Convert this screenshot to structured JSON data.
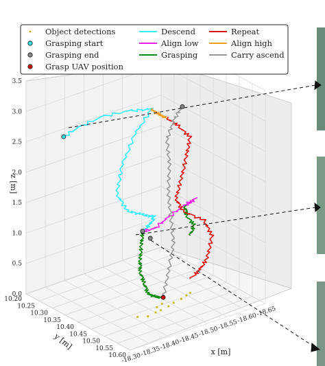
{
  "chart_data": {
    "type": "line",
    "projection": "3d",
    "title": "",
    "xlabel": "x [m]",
    "ylabel": "y [m]",
    "zlabel": "z [m]",
    "xlim": [
      -18.3,
      -18.65
    ],
    "ylim": [
      10.2,
      10.6
    ],
    "zlim": [
      0.0,
      3.5
    ],
    "x_ticks": [
      "-18.30",
      "-18.35",
      "-18.40",
      "-18.45",
      "-18.50",
      "-18.55",
      "-18.60",
      "-18.65"
    ],
    "y_ticks": [
      "10.20",
      "10.25",
      "10.30",
      "10.35",
      "10.40",
      "10.45",
      "10.50",
      "10.55",
      "10.60"
    ],
    "z_ticks": [
      "0.0",
      "0.5",
      "1.0",
      "1.5",
      "2.0",
      "2.5",
      "3.0",
      "3.5"
    ],
    "grid": true,
    "legend_position": "top",
    "legend": [
      {
        "label": "Object detections",
        "kind": "dots",
        "color": "#d4a017"
      },
      {
        "label": "Grasping start",
        "kind": "marker",
        "color": "#33e0e0"
      },
      {
        "label": "Grasping end",
        "kind": "marker",
        "color": "#888888"
      },
      {
        "label": "Grasp UAV position",
        "kind": "marker",
        "color": "#cc1111"
      },
      {
        "label": "Descend",
        "kind": "line",
        "color": "#33eeff"
      },
      {
        "label": "Align low",
        "kind": "line",
        "color": "#ee22ee"
      },
      {
        "label": "Grasping",
        "kind": "line",
        "color": "#118811"
      },
      {
        "label": "Repeat",
        "kind": "line",
        "color": "#dd1111"
      },
      {
        "label": "Align high",
        "kind": "line",
        "color": "#f0a020"
      },
      {
        "label": "Carry ascend",
        "kind": "line",
        "color": "#999999"
      }
    ],
    "series": [
      {
        "name": "Descend",
        "color": "#33eeff",
        "points": [
          [
            -18.33,
            10.3,
            2.75
          ],
          [
            -18.36,
            10.32,
            2.9
          ],
          [
            -18.4,
            10.35,
            3.05
          ],
          [
            -18.45,
            10.38,
            3.1
          ],
          [
            -18.49,
            10.4,
            3.08
          ],
          [
            -18.44,
            10.41,
            2.8
          ],
          [
            -18.4,
            10.42,
            2.4
          ],
          [
            -18.38,
            10.43,
            2.0
          ],
          [
            -18.4,
            10.44,
            1.7
          ],
          [
            -18.44,
            10.44,
            1.55
          ],
          [
            -18.47,
            10.44,
            1.45
          ],
          [
            -18.46,
            10.44,
            1.35
          ],
          [
            -18.44,
            10.44,
            1.28
          ]
        ]
      },
      {
        "name": "Align high",
        "color": "#f0a020",
        "points": [
          [
            -18.49,
            10.4,
            3.08
          ],
          [
            -18.51,
            10.4,
            2.95
          ],
          [
            -18.53,
            10.4,
            2.85
          ]
        ]
      },
      {
        "name": "Align low",
        "color": "#ee22ee",
        "points": [
          [
            -18.44,
            10.44,
            1.28
          ],
          [
            -18.47,
            10.44,
            1.25
          ],
          [
            -18.5,
            10.45,
            1.4
          ],
          [
            -18.54,
            10.45,
            1.5
          ],
          [
            -18.57,
            10.45,
            1.55
          ],
          [
            -18.55,
            10.44,
            1.45
          ]
        ]
      },
      {
        "name": "Grasping",
        "color": "#118811",
        "points": [
          [
            -18.44,
            10.44,
            1.28
          ],
          [
            -18.43,
            10.45,
            1.1
          ],
          [
            -18.42,
            10.46,
            0.9
          ],
          [
            -18.42,
            10.46,
            0.7
          ],
          [
            -18.43,
            10.46,
            0.5
          ],
          [
            -18.44,
            10.46,
            0.3
          ],
          [
            -18.46,
            10.46,
            0.2
          ],
          [
            -18.48,
            10.46,
            0.15
          ]
        ]
      },
      {
        "name": "Grasping",
        "color": "#118811",
        "points": [
          [
            -18.55,
            10.44,
            1.45
          ],
          [
            -18.56,
            10.43,
            1.25
          ],
          [
            -18.58,
            10.43,
            1.05
          ],
          [
            -18.57,
            10.43,
            0.9
          ]
        ]
      },
      {
        "name": "Repeat",
        "color": "#dd1111",
        "points": [
          [
            -18.53,
            10.4,
            2.85
          ],
          [
            -18.56,
            10.4,
            2.65
          ],
          [
            -18.59,
            10.4,
            2.4
          ],
          [
            -18.58,
            10.4,
            2.1
          ],
          [
            -18.56,
            10.41,
            1.8
          ],
          [
            -18.54,
            10.42,
            1.55
          ],
          [
            -18.55,
            10.43,
            1.35
          ],
          [
            -18.6,
            10.44,
            1.1
          ],
          [
            -18.62,
            10.44,
            0.8
          ],
          [
            -18.6,
            10.45,
            0.5
          ],
          [
            -18.58,
            10.45,
            0.35
          ],
          [
            -18.55,
            10.46,
            0.3
          ]
        ]
      },
      {
        "name": "Carry ascend",
        "color": "#999999",
        "points": [
          [
            -18.48,
            10.46,
            0.15
          ],
          [
            -18.5,
            10.45,
            0.5
          ],
          [
            -18.52,
            10.44,
            0.9
          ],
          [
            -18.52,
            10.43,
            1.3
          ],
          [
            -18.52,
            10.42,
            1.7
          ],
          [
            -18.53,
            10.41,
            2.1
          ],
          [
            -18.53,
            10.4,
            2.5
          ],
          [
            -18.55,
            10.4,
            2.8
          ],
          [
            -18.57,
            10.4,
            2.95
          ]
        ]
      },
      {
        "name": "Object detections",
        "color": "#c8c020",
        "points": [
          [
            -18.4,
            10.48,
            0.05
          ],
          [
            -18.42,
            10.49,
            0.04
          ],
          [
            -18.44,
            10.49,
            0.06
          ],
          [
            -18.46,
            10.48,
            0.03
          ],
          [
            -18.48,
            10.48,
            0.05
          ],
          [
            -18.5,
            10.47,
            0.04
          ],
          [
            -18.52,
            10.47,
            0.06
          ],
          [
            -18.54,
            10.46,
            0.05
          ],
          [
            -18.55,
            10.46,
            0.07
          ],
          [
            -18.45,
            10.48,
            0.1
          ],
          [
            -18.47,
            10.47,
            0.09
          ]
        ]
      }
    ],
    "markers": [
      {
        "label": "Grasping start",
        "color": "#33e0e0",
        "point": [
          -18.33,
          10.3,
          2.75
        ]
      },
      {
        "label": "Grasping end",
        "color": "#888888",
        "point": [
          -18.57,
          10.4,
          2.95
        ]
      },
      {
        "label": "Grasping end",
        "color": "#888888",
        "point": [
          -18.44,
          10.44,
          1.28
        ]
      },
      {
        "label": "Grasping end",
        "color": "#888888",
        "point": [
          -18.46,
          10.44,
          1.12
        ]
      },
      {
        "label": "Grasp UAV position",
        "color": "#cc1111",
        "point": [
          -18.48,
          10.46,
          0.15
        ]
      }
    ]
  }
}
